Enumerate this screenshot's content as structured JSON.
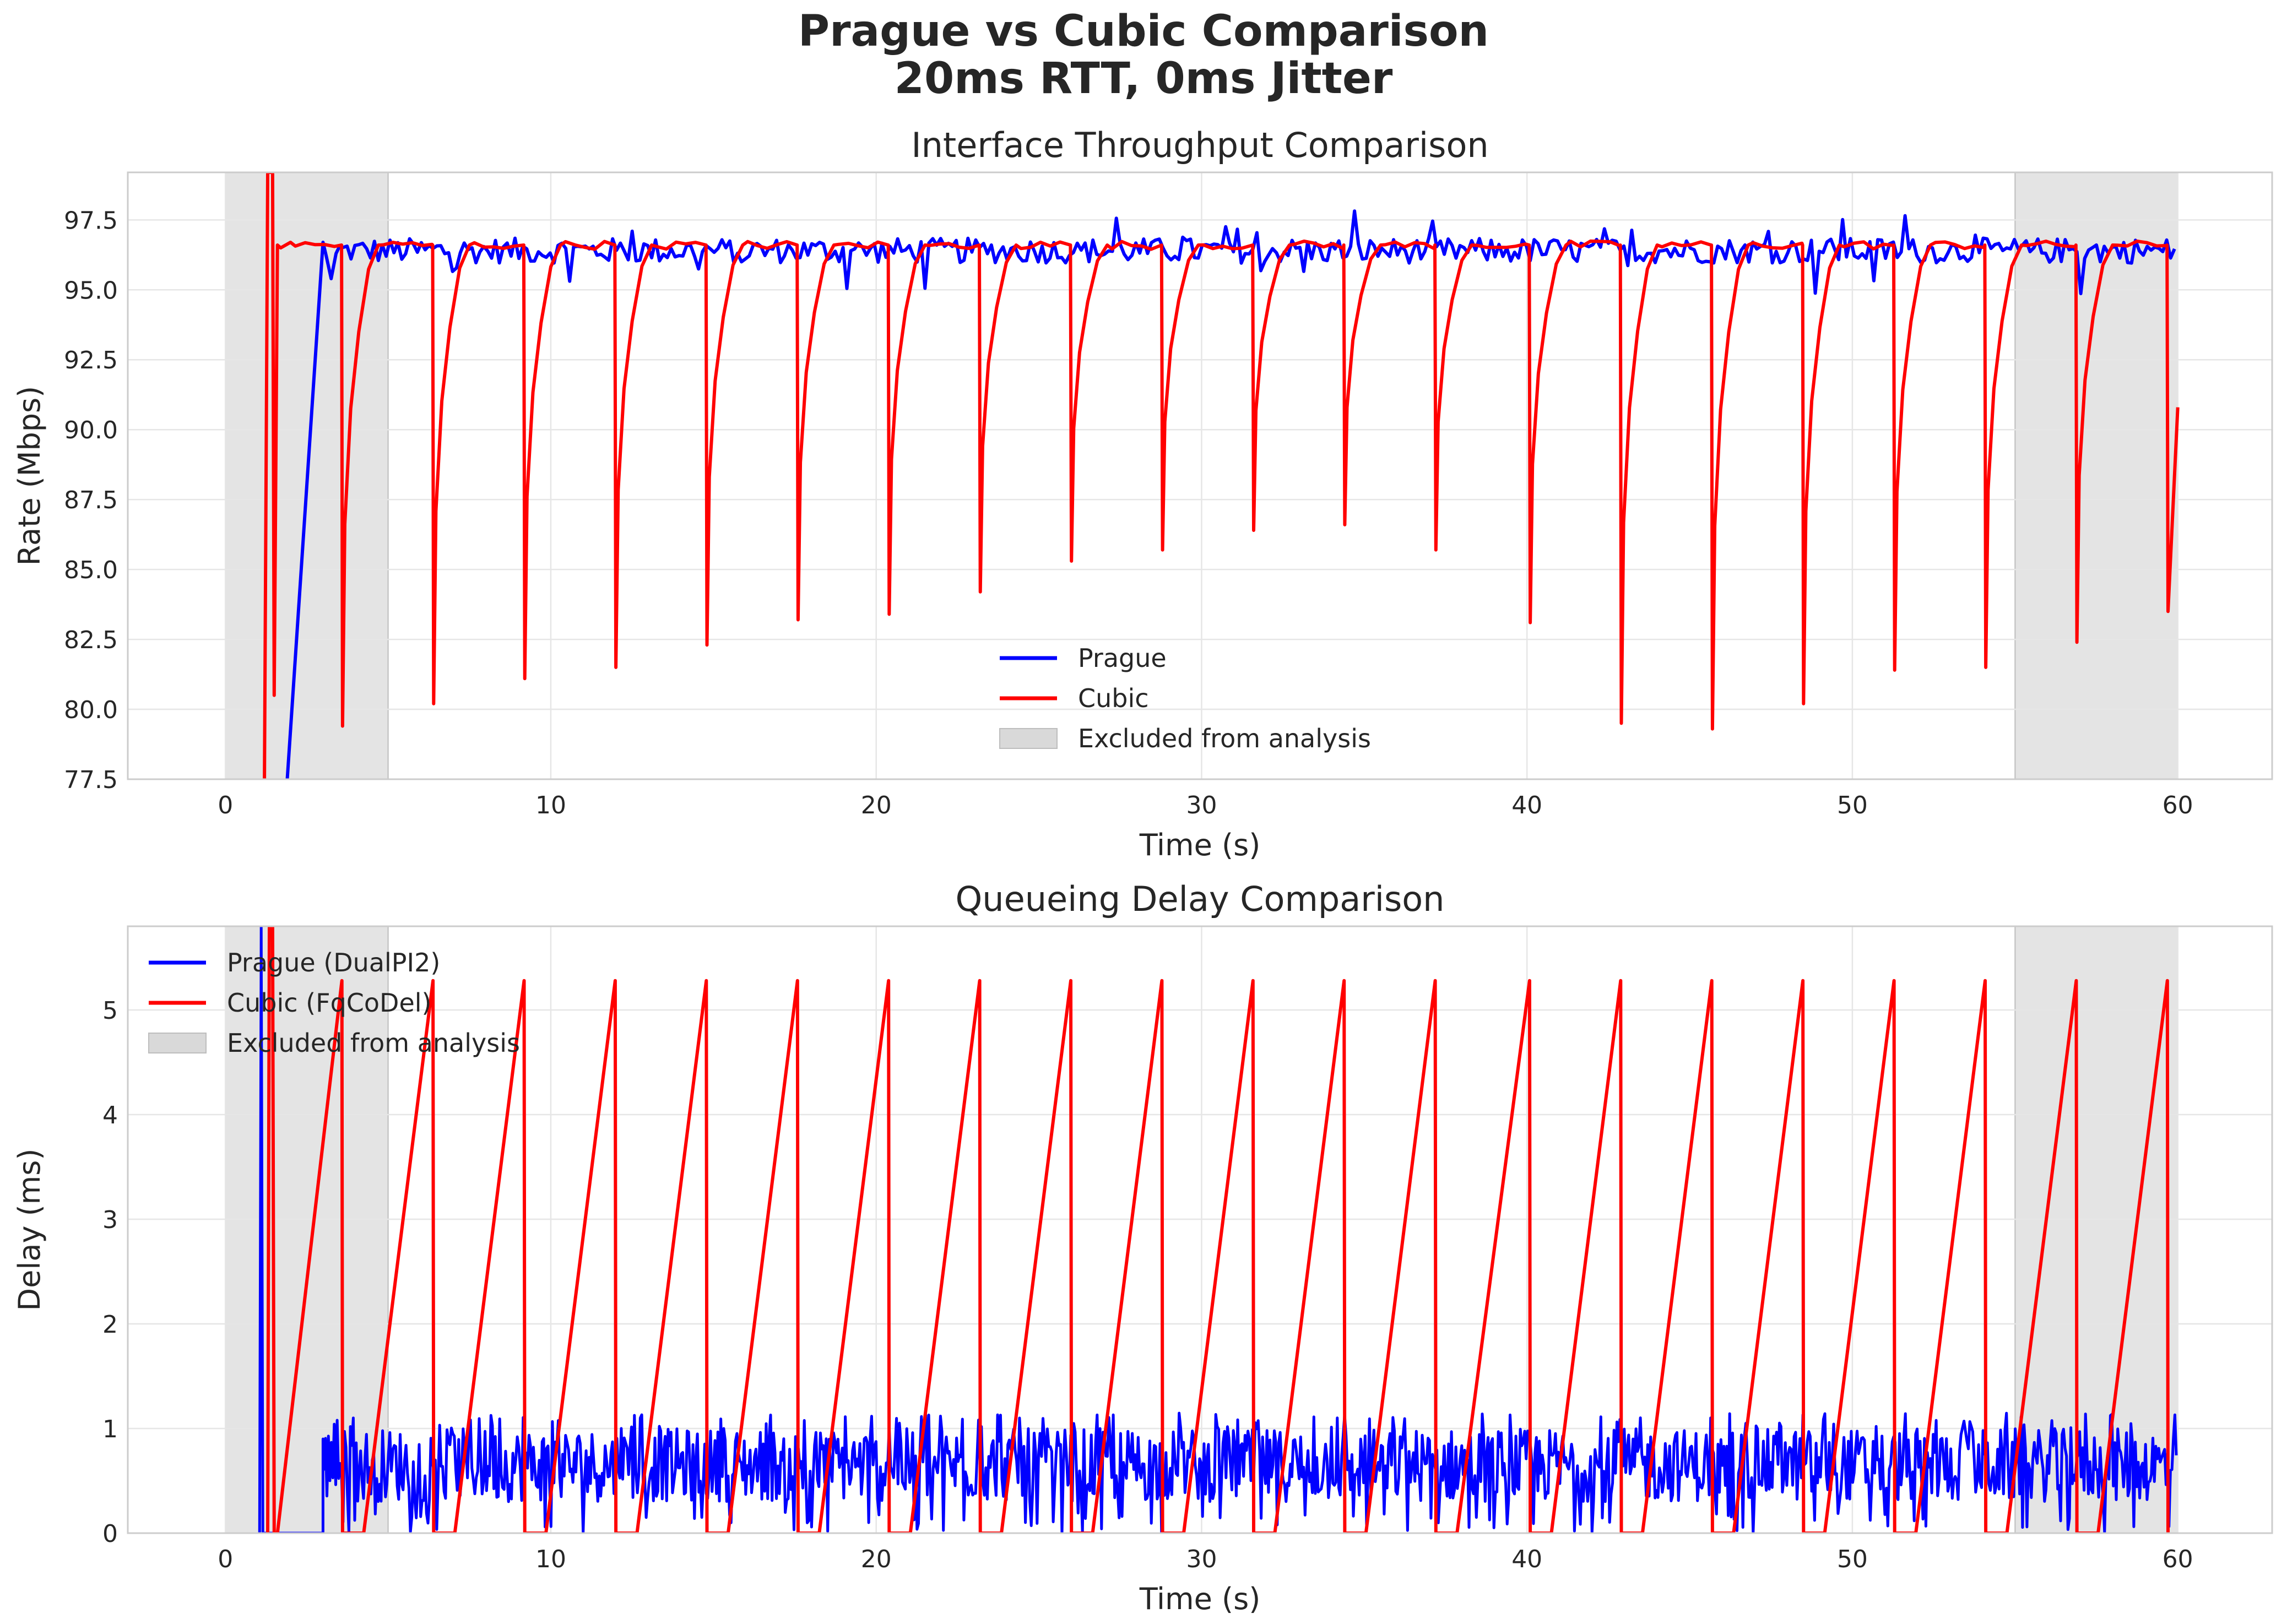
{
  "figure": {
    "title_line1": "Prague vs Cubic Comparison",
    "title_line2": "20ms RTT, 0ms Jitter"
  },
  "colors": {
    "prague": "#0000ff",
    "cubic": "#ff0000",
    "excluded": "#d9d9d9",
    "grid": "#e6e6e6",
    "axis": "#cccccc",
    "text": "#262626"
  },
  "chart_data": [
    {
      "type": "line",
      "title": "Interface Throughput Comparison",
      "xlabel": "Time (s)",
      "ylabel": "Rate (Mbps)",
      "xlim": [
        -3,
        62.9
      ],
      "ylim": [
        77.5,
        99.2
      ],
      "xticks": [
        0,
        10,
        20,
        30,
        40,
        50,
        60
      ],
      "xtick_labels": [
        "0",
        "10",
        "20",
        "30",
        "40",
        "50",
        "60"
      ],
      "yticks": [
        77.5,
        80.0,
        82.5,
        85.0,
        87.5,
        90.0,
        92.5,
        95.0,
        97.5
      ],
      "ytick_labels": [
        "77.5",
        "80.0",
        "82.5",
        "85.0",
        "87.5",
        "90.0",
        "92.5",
        "95.0",
        "97.5"
      ],
      "grid": true,
      "legend_position": "lower-center",
      "excluded_regions": [
        [
          0,
          5
        ],
        [
          55,
          60
        ]
      ],
      "series": [
        {
          "name": "Prague",
          "color": "#0000ff",
          "steady_mean": 96.4,
          "steady_amplitude": 0.45,
          "ramp": [
            [
              1.9,
              77.5
            ],
            [
              3.0,
              96.7
            ]
          ],
          "end_time": 60
        },
        {
          "name": "Cubic",
          "color": "#ff0000",
          "x": [
            1.2,
            1.3,
            1.45,
            1.5,
            1.6,
            1.7,
            2.0
          ],
          "y": [
            77.5,
            99.2,
            99.2,
            80.5,
            96.6,
            96.5,
            96.7
          ],
          "steady_value": 96.6,
          "dips": [
            {
              "t": 3.6,
              "min": 79.4
            },
            {
              "t": 6.4,
              "min": 80.2
            },
            {
              "t": 9.2,
              "min": 81.1
            },
            {
              "t": 12.0,
              "min": 81.5
            },
            {
              "t": 14.8,
              "min": 82.3
            },
            {
              "t": 17.6,
              "min": 83.2
            },
            {
              "t": 20.4,
              "min": 83.4
            },
            {
              "t": 23.2,
              "min": 84.2
            },
            {
              "t": 26.0,
              "min": 85.3
            },
            {
              "t": 28.8,
              "min": 85.7
            },
            {
              "t": 31.6,
              "min": 86.4
            },
            {
              "t": 34.4,
              "min": 86.6
            },
            {
              "t": 37.2,
              "min": 85.7
            },
            {
              "t": 40.1,
              "min": 83.1
            },
            {
              "t": 42.9,
              "min": 79.5
            },
            {
              "t": 45.7,
              "min": 79.3
            },
            {
              "t": 48.5,
              "min": 80.2
            },
            {
              "t": 51.3,
              "min": 81.4
            },
            {
              "t": 54.1,
              "min": 81.5
            },
            {
              "t": 56.9,
              "min": 82.4
            },
            {
              "t": 59.7,
              "min": 83.5
            }
          ],
          "end": [
            [
              59.7,
              83.5
            ],
            [
              60.0,
              90.8
            ]
          ]
        }
      ],
      "legend": {
        "entries": [
          "Prague",
          "Cubic",
          "Excluded from analysis"
        ]
      }
    },
    {
      "type": "line",
      "title": "Queueing Delay Comparison",
      "xlabel": "Time (s)",
      "ylabel": "Delay (ms)",
      "xlim": [
        -3,
        62.9
      ],
      "ylim": [
        0,
        5.8
      ],
      "xticks": [
        0,
        10,
        20,
        30,
        40,
        50,
        60
      ],
      "xtick_labels": [
        "0",
        "10",
        "20",
        "30",
        "40",
        "50",
        "60"
      ],
      "yticks": [
        0,
        1,
        2,
        3,
        4,
        5
      ],
      "ytick_labels": [
        "0",
        "1",
        "2",
        "3",
        "4",
        "5"
      ],
      "grid": true,
      "legend_position": "upper-left",
      "excluded_regions": [
        [
          0,
          5
        ],
        [
          55,
          60
        ]
      ],
      "series": [
        {
          "name": "Prague (DualPI2)",
          "color": "#0000ff",
          "spike": [
            [
              1.05,
              0
            ],
            [
              1.1,
              5.8
            ],
            [
              1.15,
              0
            ]
          ],
          "idle": [
            [
              1.15,
              0
            ],
            [
              3.0,
              0
            ]
          ],
          "steady_mean": 0.6,
          "steady_range": [
            0.0,
            1.15
          ],
          "start": 3.0,
          "end_time": 60
        },
        {
          "name": "Cubic (FqCoDel)",
          "color": "#ff0000",
          "spike": [
            [
              1.3,
              0
            ],
            [
              1.35,
              5.8
            ],
            [
              1.45,
              5.8
            ],
            [
              1.5,
              0
            ]
          ],
          "sawtooth_peak": 5.28,
          "drops": [
            3.6,
            6.4,
            9.2,
            12.0,
            14.8,
            17.6,
            20.4,
            23.2,
            26.0,
            28.8,
            31.6,
            34.4,
            37.2,
            40.1,
            42.9,
            45.7,
            48.5,
            51.3,
            54.1,
            56.9,
            59.7
          ],
          "zero_hold_s": 0.65,
          "first_rise_start": 1.6
        }
      ],
      "legend": {
        "entries": [
          "Prague (DualPI2)",
          "Cubic (FqCoDel)",
          "Excluded from analysis"
        ]
      }
    }
  ]
}
